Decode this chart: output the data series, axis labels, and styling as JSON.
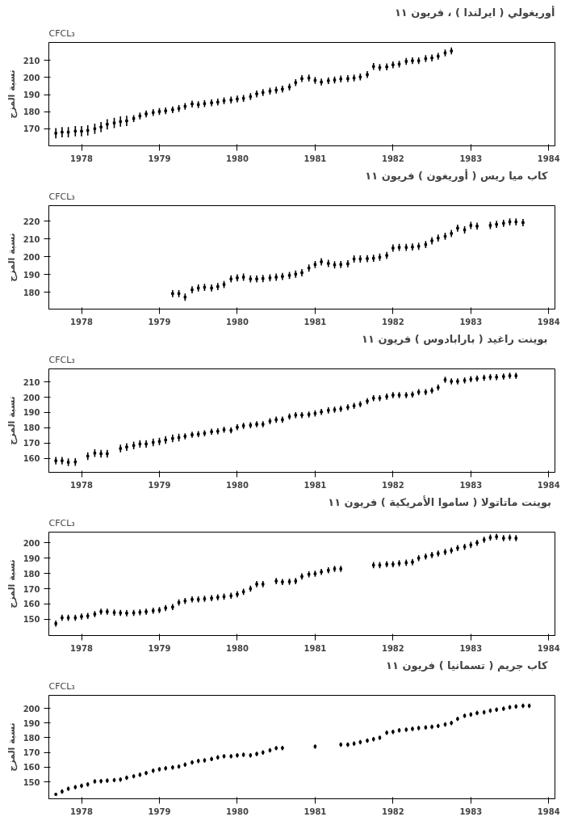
{
  "chart_data": [
    {
      "type": "scatter",
      "title": "أوريغولي ( ايرلندا ) ، فريون ١١",
      "subtitle": "CFCL₃",
      "ylabel": "نسبة المزج",
      "marker": "square",
      "xlim": [
        1978.08,
        1984.58
      ],
      "ylim": [
        160,
        220.5
      ],
      "yticks": [
        170,
        180,
        190,
        200,
        210
      ],
      "xticks": [
        {
          "value": 1978.5,
          "label": "1978"
        },
        {
          "value": 1979.5,
          "label": "1979"
        },
        {
          "value": 1980.5,
          "label": "1980"
        },
        {
          "value": 1981.5,
          "label": "1981"
        },
        {
          "value": 1982.5,
          "label": "1982"
        },
        {
          "value": 1983.5,
          "label": "1983"
        },
        {
          "value": 1984.5,
          "label": "1984"
        }
      ],
      "x": [
        1978.17,
        1978.25,
        1978.33,
        1978.42,
        1978.5,
        1978.58,
        1978.67,
        1978.75,
        1978.83,
        1978.92,
        1979,
        1979.08,
        1979.17,
        1979.25,
        1979.33,
        1979.42,
        1979.5,
        1979.58,
        1979.67,
        1979.75,
        1979.83,
        1979.92,
        1980,
        1980.08,
        1980.17,
        1980.25,
        1980.33,
        1980.42,
        1980.5,
        1980.58,
        1980.67,
        1980.75,
        1980.83,
        1980.92,
        1981,
        1981.08,
        1981.17,
        1981.25,
        1981.33,
        1981.42,
        1981.5,
        1981.58,
        1981.67,
        1981.75,
        1981.83,
        1981.92,
        1982,
        1982.08,
        1982.17,
        1982.25,
        1982.33,
        1982.42,
        1982.5,
        1982.58,
        1982.67,
        1982.75,
        1982.83,
        1982.92,
        1983,
        1983.08,
        1983.17,
        1983.25
      ],
      "series": [
        {
          "color": "#000000",
          "values": [
            167.4,
            168,
            168,
            168.6,
            168.6,
            169,
            170,
            171,
            172.6,
            173.4,
            174.2,
            174.6,
            176,
            177.5,
            178.7,
            179.5,
            180.1,
            180.5,
            181.1,
            181.9,
            183.1,
            184.5,
            184.1,
            184.7,
            185.2,
            185.6,
            186.4,
            186.8,
            187.4,
            187.8,
            188.8,
            190.4,
            191.2,
            192,
            192.6,
            193.2,
            194.4,
            197,
            199.3,
            199.7,
            198.3,
            197.3,
            198.1,
            198.5,
            199.1,
            199.3,
            199.7,
            200.3,
            201.7,
            206.4,
            205.8,
            206.2,
            207.4,
            207.8,
            209.4,
            209.8,
            209.8,
            211,
            211.4,
            212.4,
            214.4,
            215.5
          ],
          "errors": [
            3,
            3,
            3,
            3,
            3,
            3,
            3,
            3,
            3,
            3,
            3,
            3,
            2,
            2,
            2,
            2,
            2,
            2,
            2,
            2,
            2,
            2,
            2,
            2,
            2,
            2,
            2,
            2,
            2,
            2,
            2,
            2,
            2,
            2,
            2,
            2,
            2,
            2,
            2,
            2,
            2,
            2,
            2,
            2,
            2,
            2,
            2,
            2,
            2,
            2,
            2,
            2,
            2,
            2,
            2,
            2,
            2,
            2,
            2,
            2,
            2,
            2
          ]
        }
      ]
    },
    {
      "type": "scatter",
      "title": "كاب ميا ريس ( أوريغون )   فريون ١١",
      "subtitle": "CFCL₃",
      "ylabel": "نسبة المزج",
      "marker": "square",
      "xlim": [
        1978.08,
        1984.58
      ],
      "ylim": [
        170.7,
        228.7
      ],
      "yticks": [
        180,
        190,
        200,
        210,
        220
      ],
      "xticks": [
        {
          "value": 1978.5,
          "label": "1978"
        },
        {
          "value": 1979.5,
          "label": "1979"
        },
        {
          "value": 1980.5,
          "label": "1980"
        },
        {
          "value": 1981.5,
          "label": "1981"
        },
        {
          "value": 1982.5,
          "label": "1982"
        },
        {
          "value": 1983.5,
          "label": "1983"
        },
        {
          "value": 1984.5,
          "label": "1984"
        }
      ],
      "x": [
        1979.67,
        1979.75,
        1979.83,
        1979.92,
        1980,
        1980.08,
        1980.17,
        1980.25,
        1980.33,
        1980.42,
        1980.5,
        1980.58,
        1980.67,
        1980.75,
        1980.83,
        1980.92,
        1981,
        1981.08,
        1981.17,
        1981.25,
        1981.33,
        1981.42,
        1981.5,
        1981.58,
        1981.67,
        1981.75,
        1981.83,
        1981.92,
        1982,
        1982.08,
        1982.17,
        1982.25,
        1982.33,
        1982.42,
        1982.5,
        1982.58,
        1982.67,
        1982.75,
        1982.83,
        1982.92,
        1983,
        1983.08,
        1983.17,
        1983.25,
        1983.33,
        1983.42,
        1983.5,
        1983.58,
        1983.67,
        1983.75,
        1983.83,
        1983.92,
        1984,
        1984.08,
        1984.17
      ],
      "series": [
        {
          "color": "#000000",
          "values": [
            179.4,
            179.4,
            177.4,
            181.5,
            182.5,
            182.9,
            182.5,
            183.3,
            184.5,
            187.6,
            188.2,
            188.6,
            187.6,
            187.6,
            187.8,
            188.2,
            188.6,
            189,
            189.6,
            190.3,
            191.1,
            193.7,
            195.7,
            197.2,
            196.3,
            195.5,
            195.7,
            196.1,
            198.8,
            198.8,
            199,
            199.2,
            199.8,
            200.8,
            204.9,
            205.3,
            205.3,
            205.5,
            205.9,
            206.9,
            209,
            210.5,
            211.5,
            213.1,
            216.1,
            215.1,
            217.6,
            217.2,
            null,
            217.6,
            218.2,
            218.8,
            219.6,
            219.6,
            219.2
          ],
          "errors": [
            2,
            2,
            2,
            2,
            2,
            2,
            2,
            2,
            2,
            2,
            2,
            2,
            2,
            2,
            2,
            2,
            2,
            2,
            2,
            2,
            2,
            2,
            2,
            2,
            2,
            2,
            2,
            2,
            2,
            2,
            2,
            2,
            2,
            2,
            2,
            2,
            2,
            2,
            2,
            2,
            2,
            2,
            2,
            2,
            2,
            2,
            2,
            2,
            null,
            2,
            2,
            2,
            2,
            2,
            2
          ]
        }
      ]
    },
    {
      "type": "scatter",
      "title": "بوينت راغيد ( بارابادوس )   فريون ١١",
      "subtitle": "CFCL₃",
      "ylabel": "نسبة المزج",
      "marker": "square",
      "xlim": [
        1978.08,
        1984.58
      ],
      "ylim": [
        150.8,
        218.6
      ],
      "yticks": [
        160,
        170,
        180,
        190,
        200,
        210
      ],
      "xticks": [
        {
          "value": 1978.5,
          "label": "1978"
        },
        {
          "value": 1979.5,
          "label": "1979"
        },
        {
          "value": 1980.5,
          "label": "1980"
        },
        {
          "value": 1981.5,
          "label": "1981"
        },
        {
          "value": 1982.5,
          "label": "1982"
        },
        {
          "value": 1983.5,
          "label": "1983"
        },
        {
          "value": 1984.5,
          "label": "1984"
        }
      ],
      "x": [
        1978.17,
        1978.25,
        1978.33,
        1978.42,
        1978.5,
        1978.58,
        1978.67,
        1978.75,
        1978.83,
        1978.92,
        1979,
        1979.08,
        1979.17,
        1979.25,
        1979.33,
        1979.42,
        1979.5,
        1979.58,
        1979.67,
        1979.75,
        1979.83,
        1979.92,
        1980,
        1980.08,
        1980.17,
        1980.25,
        1980.33,
        1980.42,
        1980.5,
        1980.58,
        1980.67,
        1980.75,
        1980.83,
        1980.92,
        1981,
        1981.08,
        1981.17,
        1981.25,
        1981.33,
        1981.42,
        1981.5,
        1981.58,
        1981.67,
        1981.75,
        1981.83,
        1981.92,
        1982,
        1982.08,
        1982.17,
        1982.25,
        1982.33,
        1982.42,
        1982.5,
        1982.58,
        1982.67,
        1982.75,
        1982.83,
        1982.92,
        1983,
        1983.08,
        1983.17,
        1983.25,
        1983.33,
        1983.42,
        1983.5,
        1983.58,
        1983.67,
        1983.75,
        1983.83,
        1983.92,
        1984,
        1984.08
      ],
      "series": [
        {
          "color": "#000000",
          "values": [
            158.4,
            158.4,
            157.4,
            157.6,
            null,
            161.4,
            163.4,
            163,
            163,
            null,
            166.4,
            167.4,
            168.4,
            169.4,
            169.4,
            170.4,
            171,
            172,
            173,
            173.6,
            174.4,
            175.4,
            175.8,
            176.4,
            177.4,
            177.7,
            178.7,
            178.3,
            180.3,
            181.3,
            181.7,
            182.3,
            182.3,
            184.3,
            185.3,
            185.3,
            187.3,
            188.3,
            188.3,
            188.7,
            189.4,
            190.4,
            191.4,
            191.8,
            192.4,
            193.4,
            194.4,
            195.4,
            197.4,
            199.4,
            199.4,
            200.4,
            201.4,
            201.4,
            201.4,
            201.8,
            203.4,
            203.4,
            204.4,
            206.4,
            211.4,
            210.4,
            210.4,
            211,
            211.8,
            212.2,
            212.8,
            213.2,
            213.2,
            213.6,
            214.1,
            214.1
          ],
          "errors": [
            2.5,
            2.5,
            2.5,
            2.5,
            null,
            2.5,
            2.5,
            2.5,
            2.5,
            null,
            2.5,
            2.5,
            2.5,
            2.5,
            2.5,
            2.5,
            2.5,
            2.5,
            2.5,
            2.5,
            2,
            2,
            2,
            2,
            2,
            2,
            2,
            2,
            2,
            2,
            2,
            2,
            2,
            2,
            2,
            2,
            2,
            2,
            2,
            2,
            2,
            2,
            2,
            2,
            2,
            2,
            2,
            2,
            2,
            2,
            2,
            2,
            2,
            2,
            2,
            2,
            2,
            2,
            2,
            2,
            2,
            2,
            2,
            2,
            2,
            2,
            2,
            2,
            2,
            2,
            2,
            2
          ]
        }
      ]
    },
    {
      "type": "scatter",
      "title": "بوينت ماتاتولا ( ساموا الأمريكية )  فريون ١١",
      "subtitle": "CFCL₃",
      "ylabel": "نسبة المزج",
      "marker": "square",
      "xlim": [
        1978.08,
        1984.58
      ],
      "ylim": [
        139.4,
        207
      ],
      "yticks": [
        150,
        160,
        170,
        180,
        190,
        200
      ],
      "xticks": [
        {
          "value": 1978.5,
          "label": "1978"
        },
        {
          "value": 1979.5,
          "label": "1979"
        },
        {
          "value": 1980.5,
          "label": "1980"
        },
        {
          "value": 1981.5,
          "label": "1981"
        },
        {
          "value": 1982.5,
          "label": "1982"
        },
        {
          "value": 1983.5,
          "label": "1983"
        },
        {
          "value": 1984.5,
          "label": "1984"
        }
      ],
      "x": [
        1978.17,
        1978.25,
        1978.33,
        1978.42,
        1978.5,
        1978.58,
        1978.67,
        1978.75,
        1978.83,
        1978.92,
        1979,
        1979.08,
        1979.17,
        1979.25,
        1979.33,
        1979.42,
        1979.5,
        1979.58,
        1979.67,
        1979.75,
        1979.83,
        1979.92,
        1980,
        1980.08,
        1980.17,
        1980.25,
        1980.33,
        1980.42,
        1980.5,
        1980.58,
        1980.67,
        1980.75,
        1980.83,
        1980.92,
        1981,
        1981.08,
        1981.17,
        1981.25,
        1981.33,
        1981.42,
        1981.5,
        1981.58,
        1981.67,
        1981.75,
        1981.83,
        1981.92,
        1982,
        1982.08,
        1982.17,
        1982.25,
        1982.33,
        1982.42,
        1982.5,
        1982.58,
        1982.67,
        1982.75,
        1982.83,
        1982.92,
        1983,
        1983.08,
        1983.17,
        1983.25,
        1983.33,
        1983.42,
        1983.5,
        1983.58,
        1983.67,
        1983.75,
        1983.83,
        1983.92,
        1984,
        1984.08
      ],
      "series": [
        {
          "color": "#000000",
          "values": [
            147.2,
            151,
            151,
            151,
            151.8,
            152.2,
            153.4,
            155,
            155,
            154.4,
            154.2,
            154,
            154.2,
            154.6,
            155,
            155.6,
            156,
            157.4,
            158,
            161,
            162,
            163,
            163,
            163.4,
            163.8,
            164.4,
            164.8,
            165.4,
            166.4,
            168,
            170,
            173,
            173,
            null,
            175,
            174.4,
            174.6,
            175,
            178,
            179.4,
            179.8,
            181,
            182,
            183,
            183,
            null,
            null,
            null,
            null,
            185.4,
            185.4,
            186,
            186,
            186.6,
            187,
            187.4,
            190,
            191,
            192,
            193,
            194,
            195,
            196.6,
            197.4,
            198.6,
            200,
            202,
            203.4,
            204,
            203,
            203.4,
            203
          ],
          "errors": [
            2,
            2,
            2,
            2,
            2,
            2,
            2,
            2,
            2,
            2,
            2,
            2,
            2,
            2,
            2,
            2,
            2,
            2,
            2,
            2,
            2,
            2,
            2,
            2,
            2,
            2,
            2,
            2,
            2,
            2,
            2,
            2,
            2,
            null,
            2,
            2,
            2,
            2,
            2,
            2,
            2,
            2,
            2,
            2,
            2,
            null,
            null,
            null,
            null,
            2,
            2,
            2,
            2,
            2,
            2,
            2,
            2,
            2,
            2,
            2,
            2,
            2,
            2,
            2,
            2,
            2,
            2,
            2,
            2,
            2,
            2,
            2
          ]
        }
      ]
    },
    {
      "type": "scatter",
      "title": "كاب جريم ( تسمانيا )   فريون ١١",
      "subtitle": "CFCL₃",
      "ylabel": "نسبة المزج",
      "marker": "square",
      "xlim": [
        1978.08,
        1984.58
      ],
      "ylim": [
        138.5,
        208.8
      ],
      "yticks": [
        150,
        160,
        170,
        180,
        190,
        200
      ],
      "xticks": [
        {
          "value": 1978.5,
          "label": "1978"
        },
        {
          "value": 1979.5,
          "label": "1979"
        },
        {
          "value": 1980.5,
          "label": "1980"
        },
        {
          "value": 1981.5,
          "label": "1981"
        },
        {
          "value": 1982.5,
          "label": "1982"
        },
        {
          "value": 1983.5,
          "label": "1983"
        },
        {
          "value": 1984.5,
          "label": "1984"
        }
      ],
      "x": [
        1978.17,
        1978.25,
        1978.33,
        1978.42,
        1978.5,
        1978.58,
        1978.67,
        1978.75,
        1978.83,
        1978.92,
        1979,
        1979.08,
        1979.17,
        1979.25,
        1979.33,
        1979.42,
        1979.5,
        1979.58,
        1979.67,
        1979.75,
        1979.83,
        1979.92,
        1980,
        1980.08,
        1980.17,
        1980.25,
        1980.33,
        1980.42,
        1980.5,
        1980.58,
        1980.67,
        1980.75,
        1980.83,
        1980.92,
        1981,
        1981.08,
        1981.17,
        1981.25,
        1981.33,
        1981.42,
        1981.5,
        1981.58,
        1981.67,
        1981.75,
        1981.83,
        1981.92,
        1982,
        1982.08,
        1982.17,
        1982.25,
        1982.33,
        1982.42,
        1982.5,
        1982.58,
        1982.67,
        1982.75,
        1982.83,
        1982.92,
        1983,
        1983.08,
        1983.17,
        1983.25,
        1983.33,
        1983.42,
        1983.5,
        1983.58,
        1983.67,
        1983.75,
        1983.83,
        1983.92,
        1984,
        1984.08,
        1984.17,
        1984.25
      ],
      "series": [
        {
          "color": "#000000",
          "values": [
            141.5,
            143.4,
            145.3,
            146.4,
            147.3,
            148.3,
            150.3,
            150.5,
            150.8,
            151.2,
            151.6,
            152.8,
            153.8,
            154.8,
            156,
            157.6,
            158.6,
            159.2,
            159.8,
            160.4,
            161.7,
            163.2,
            164.2,
            164.6,
            165.5,
            166.6,
            167.4,
            167.4,
            168,
            168.4,
            168,
            169,
            170,
            171.4,
            172.9,
            173,
            null,
            null,
            null,
            null,
            174,
            null,
            null,
            null,
            175.3,
            175.3,
            176,
            177,
            178,
            179,
            180,
            183.4,
            184,
            185,
            185.5,
            186,
            186.6,
            187,
            187.4,
            188,
            189,
            190,
            192.8,
            194.9,
            195.8,
            196.8,
            197.3,
            198.4,
            199.1,
            199.7,
            200.7,
            201.2,
            201.7,
            201.7
          ],
          "errors": [
            null,
            1.5,
            1.5,
            1.5,
            1.5,
            1.5,
            1.5,
            1.5,
            1.5,
            1.5,
            1.5,
            1.5,
            1.5,
            1.5,
            1.5,
            1.5,
            1.5,
            1.5,
            1.5,
            1.5,
            1.5,
            1.5,
            1.5,
            1.5,
            1.5,
            1.5,
            1.5,
            1.5,
            1.5,
            1.5,
            1.5,
            1.5,
            1.5,
            1.5,
            1.5,
            1.5,
            null,
            null,
            null,
            null,
            1.5,
            null,
            null,
            null,
            1.5,
            1.5,
            1.5,
            1.5,
            1.5,
            1.5,
            1.5,
            1.5,
            1.5,
            1.5,
            1.5,
            1.5,
            1.5,
            1.5,
            1.5,
            1.5,
            1.5,
            1.5,
            1.5,
            1.5,
            1.5,
            1.5,
            1.5,
            1.5,
            1.5,
            1.5,
            1.5,
            1.5,
            1.5,
            1.5
          ]
        }
      ]
    }
  ]
}
